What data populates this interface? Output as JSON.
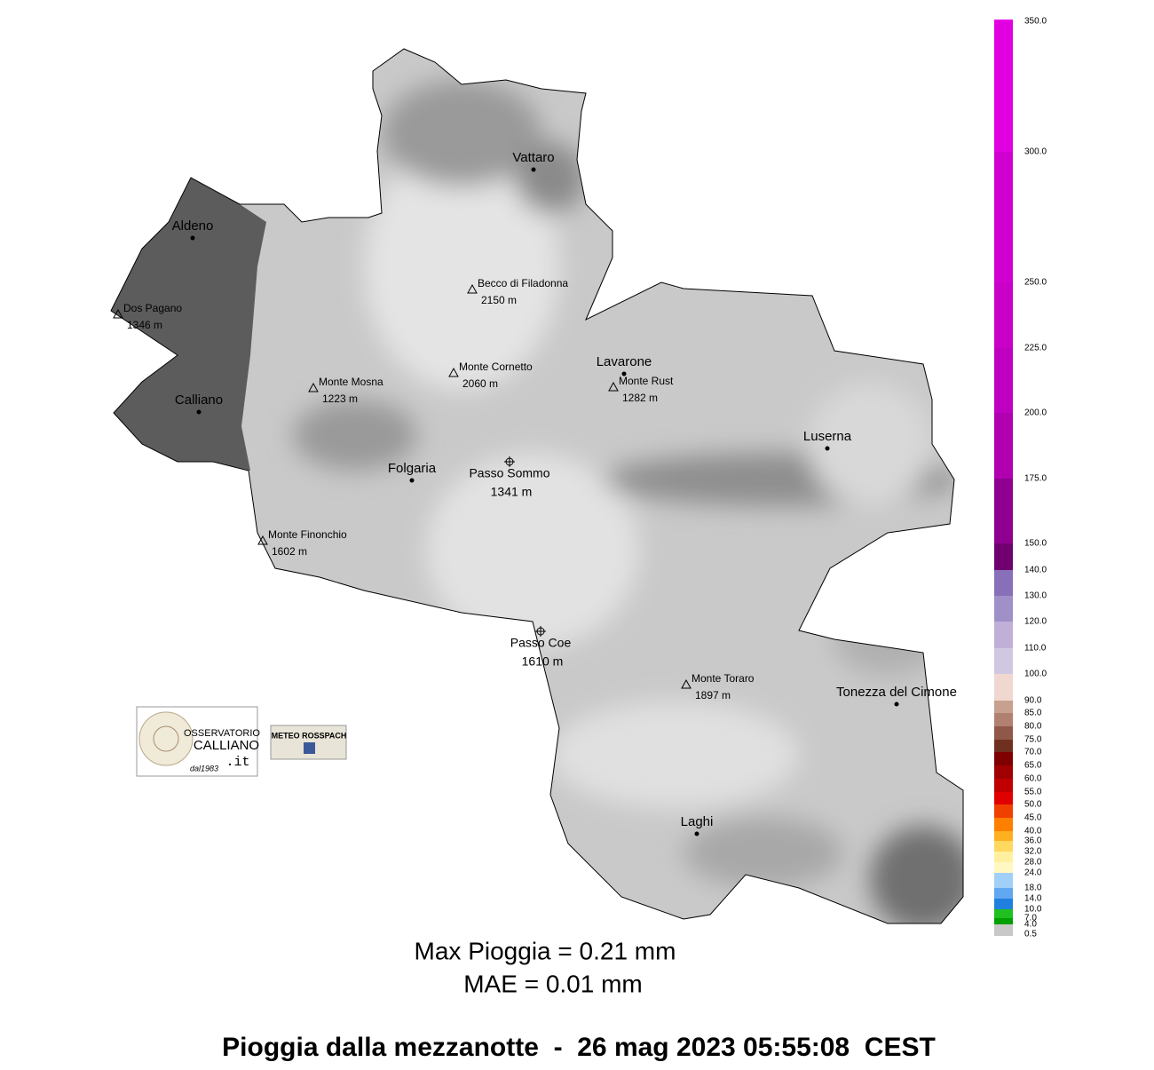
{
  "places": [
    {
      "name": "Vattaro",
      "kind": "town"
    },
    {
      "name": "Aldeno",
      "kind": "town"
    },
    {
      "name": "Calliano",
      "kind": "town"
    },
    {
      "name": "Lavarone",
      "kind": "town"
    },
    {
      "name": "Luserna",
      "kind": "town"
    },
    {
      "name": "Folgaria",
      "kind": "town"
    },
    {
      "name": "Tonezza del Cimone",
      "kind": "town"
    },
    {
      "name": "Laghi",
      "kind": "town"
    },
    {
      "name": "Dos Pagano",
      "kind": "peak",
      "elevation": "1346 m"
    },
    {
      "name": "Becco di Filadonna",
      "kind": "peak",
      "elevation": "2150 m"
    },
    {
      "name": "Monte Cornetto",
      "kind": "peak",
      "elevation": "2060 m"
    },
    {
      "name": "Monte Mosna",
      "kind": "peak",
      "elevation": "1223 m"
    },
    {
      "name": "Monte Rust",
      "kind": "peak",
      "elevation": "1282 m"
    },
    {
      "name": "Monte Finonchio",
      "kind": "peak",
      "elevation": "1602 m"
    },
    {
      "name": "Monte Toraro",
      "kind": "peak",
      "elevation": "1897 m"
    },
    {
      "name": "Passo Sommo",
      "kind": "pass",
      "elevation": "1341 m"
    },
    {
      "name": "Passo Coe",
      "kind": "pass",
      "elevation": "1610 m"
    }
  ],
  "legend": [
    {
      "label": "0.5",
      "color": "#c8c8c8"
    },
    {
      "label": "4.0",
      "color": "#00a000"
    },
    {
      "label": "7.0",
      "color": "#20c020"
    },
    {
      "label": "10.0",
      "color": "#2080e0"
    },
    {
      "label": "14.0",
      "color": "#60a8f0"
    },
    {
      "label": "18.0",
      "color": "#a0d0f8"
    },
    {
      "label": "24.0",
      "color": "#fff8c0"
    },
    {
      "label": "28.0",
      "color": "#fff0a0"
    },
    {
      "label": "32.0",
      "color": "#ffd860"
    },
    {
      "label": "36.0",
      "color": "#ffb020"
    },
    {
      "label": "40.0",
      "color": "#ff8000"
    },
    {
      "label": "45.0",
      "color": "#f04000"
    },
    {
      "label": "50.0",
      "color": "#e00000"
    },
    {
      "label": "55.0",
      "color": "#c00000"
    },
    {
      "label": "60.0",
      "color": "#a00000"
    },
    {
      "label": "65.0",
      "color": "#800000"
    },
    {
      "label": "70.0",
      "color": "#703020"
    },
    {
      "label": "75.0",
      "color": "#905848"
    },
    {
      "label": "80.0",
      "color": "#b08070"
    },
    {
      "label": "85.0",
      "color": "#c8a090"
    },
    {
      "label": "90.0",
      "color": "#f0d8d0"
    },
    {
      "label": "100.0",
      "color": "#d0c8e0"
    },
    {
      "label": "110.0",
      "color": "#c0b0d8"
    },
    {
      "label": "120.0",
      "color": "#a090c8"
    },
    {
      "label": "130.0",
      "color": "#8870b8"
    },
    {
      "label": "140.0",
      "color": "#700070"
    },
    {
      "label": "150.0",
      "color": "#900090"
    },
    {
      "label": "175.0",
      "color": "#b000b0"
    },
    {
      "label": "200.0",
      "color": "#c000c0"
    },
    {
      "label": "225.0",
      "color": "#c800c8"
    },
    {
      "label": "250.0",
      "color": "#d000d0"
    },
    {
      "label": "300.0",
      "color": "#e000e0"
    },
    {
      "label": "350.0",
      "color": "#e800e8"
    }
  ],
  "stats": [
    "Max Pioggia = 0.21 mm",
    "MAE = 0.01 mm"
  ],
  "title": "Pioggia dalla mezzanotte  -  26 mag 2023 05:55:08  CEST",
  "logos": [
    {
      "lines": [
        "OSSERVATORIO",
        "CALLIANO",
        ".it",
        "dal1983"
      ]
    },
    {
      "lines": [
        "METEO ROSSPACH"
      ]
    }
  ]
}
